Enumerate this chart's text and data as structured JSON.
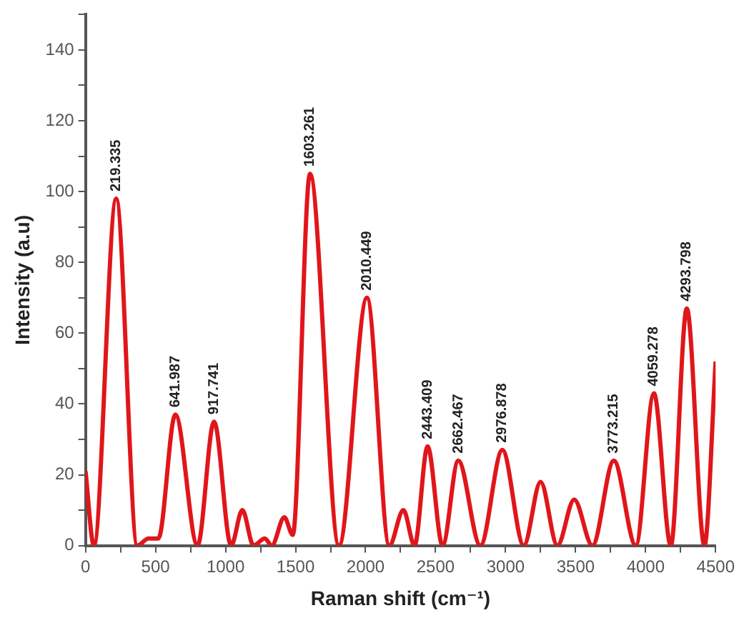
{
  "chart_data": {
    "type": "line",
    "xlabel": "Raman shift (cm⁻¹)",
    "ylabel": "Intensity (a.u)",
    "series": [
      {
        "color": "#e0161b",
        "x": [
          0,
          60,
          219,
          370,
          450,
          520,
          642,
          800,
          918,
          1040,
          1120,
          1200,
          1280,
          1330,
          1420,
          1480,
          1603,
          1810,
          2010,
          2170,
          2270,
          2350,
          2443,
          2550,
          2662,
          2820,
          2977,
          3130,
          3250,
          3370,
          3490,
          3620,
          3773,
          3930,
          4059,
          4180,
          4294,
          4420,
          4500
        ],
        "values": [
          21,
          0,
          98,
          0,
          2,
          2,
          37,
          0,
          35,
          0,
          10,
          0,
          2,
          0,
          8,
          3,
          105,
          0,
          70,
          0,
          10,
          0,
          28,
          0,
          24,
          0,
          27,
          0,
          18,
          0,
          13,
          0,
          24,
          0,
          43,
          0,
          67,
          0,
          52
        ]
      }
    ],
    "xlim": [
      0,
      4500
    ],
    "xticks": [
      0,
      {
        "value": 250,
        "label": null
      },
      500,
      {
        "value": 750,
        "label": null
      },
      1000,
      {
        "value": 1250,
        "label": null
      },
      1500,
      {
        "value": 1750,
        "label": null
      },
      2000,
      {
        "value": 2250,
        "label": null
      },
      2500,
      {
        "value": 2750,
        "label": null
      },
      3000,
      {
        "value": 3250,
        "label": null
      },
      3500,
      {
        "value": 3750,
        "label": null
      },
      4000,
      {
        "value": 4250,
        "label": null
      },
      4500
    ],
    "ylim": [
      0,
      150
    ],
    "yticks": [
      0,
      {
        "value": 10,
        "label": null
      },
      20,
      {
        "value": 30,
        "label": null
      },
      40,
      {
        "value": 50,
        "label": null
      },
      60,
      {
        "value": 70,
        "label": null
      },
      80,
      {
        "value": 90,
        "label": null
      },
      100,
      {
        "value": 110,
        "label": null
      },
      120,
      {
        "value": 130,
        "label": null
      },
      140,
      {
        "value": 150,
        "label": null
      }
    ],
    "grid": false,
    "legend": false,
    "marker": "none",
    "line_style": "solid",
    "annotations": [
      {
        "text": "219.335",
        "x": 219,
        "y": 98
      },
      {
        "text": "641.987",
        "x": 642,
        "y": 37
      },
      {
        "text": "917.741",
        "x": 918,
        "y": 35
      },
      {
        "text": "1603.261",
        "x": 1603,
        "y": 105
      },
      {
        "text": "2010.449",
        "x": 2010,
        "y": 70
      },
      {
        "text": "2443.409",
        "x": 2443,
        "y": 28
      },
      {
        "text": "2662.467",
        "x": 2662,
        "y": 24
      },
      {
        "text": "2976.878",
        "x": 2977,
        "y": 27
      },
      {
        "text": "3773.215",
        "x": 3773,
        "y": 24
      },
      {
        "text": "4059.278",
        "x": 4059,
        "y": 43
      },
      {
        "text": "4293.798",
        "x": 4294,
        "y": 67
      }
    ]
  }
}
